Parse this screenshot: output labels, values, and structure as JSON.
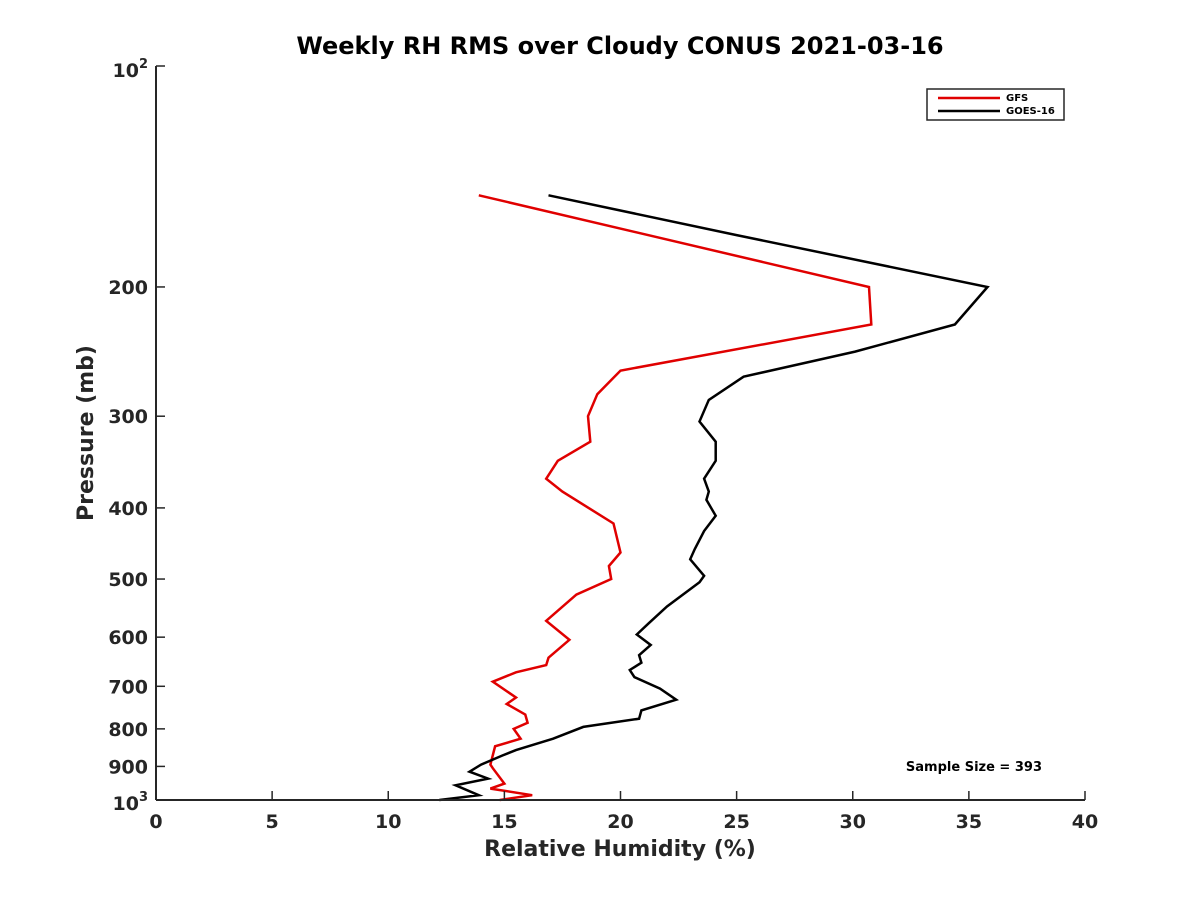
{
  "chart_data": {
    "type": "line",
    "title": "Weekly RH RMS over Cloudy CONUS 2021-03-16",
    "xlabel": "Relative Humidity (%)",
    "ylabel": "Pressure (mb)",
    "xlim": [
      0,
      40
    ],
    "ylim": [
      100,
      1000
    ],
    "y_scale": "log",
    "y_reversed": true,
    "x_ticks": [
      0,
      5,
      10,
      15,
      20,
      25,
      30,
      35,
      40
    ],
    "x_tick_labels": [
      "0",
      "5",
      "10",
      "15",
      "20",
      "25",
      "30",
      "35",
      "40"
    ],
    "y_ticks": [
      200,
      300,
      400,
      500,
      600,
      700,
      800,
      900
    ],
    "y_tick_labels": [
      "200",
      "300",
      "400",
      "500",
      "600",
      "700",
      "800",
      "900"
    ],
    "y_tick_top": {
      "base": "10",
      "exp": "2"
    },
    "y_tick_bottom": {
      "base": "10",
      "exp": "3"
    },
    "grid": false,
    "legend_position": "top-right",
    "annotation": "Sample Size = 393",
    "series": [
      {
        "name": "GFS",
        "color": "#e00000",
        "points": [
          [
            13.9,
            150
          ],
          [
            30.7,
            200
          ],
          [
            30.8,
            225
          ],
          [
            20.0,
            260
          ],
          [
            19.0,
            280
          ],
          [
            18.6,
            300
          ],
          [
            18.7,
            325
          ],
          [
            17.3,
            345
          ],
          [
            16.8,
            365
          ],
          [
            17.5,
            380
          ],
          [
            19.7,
            420
          ],
          [
            20.0,
            460
          ],
          [
            19.5,
            480
          ],
          [
            19.6,
            500
          ],
          [
            18.1,
            525
          ],
          [
            16.8,
            570
          ],
          [
            17.8,
            605
          ],
          [
            16.9,
            640
          ],
          [
            16.8,
            655
          ],
          [
            15.5,
            670
          ],
          [
            14.5,
            690
          ],
          [
            15.5,
            725
          ],
          [
            15.1,
            740
          ],
          [
            15.9,
            765
          ],
          [
            16.0,
            785
          ],
          [
            15.4,
            800
          ],
          [
            15.7,
            825
          ],
          [
            14.6,
            845
          ],
          [
            14.4,
            895
          ],
          [
            14.5,
            905
          ],
          [
            15.0,
            950
          ],
          [
            14.4,
            965
          ],
          [
            16.2,
            985
          ],
          [
            14.8,
            1000
          ]
        ]
      },
      {
        "name": "GOES-16",
        "color": "#000000",
        "points": [
          [
            16.9,
            150
          ],
          [
            25.0,
            170
          ],
          [
            35.8,
            200
          ],
          [
            34.4,
            225
          ],
          [
            30.1,
            245
          ],
          [
            25.3,
            265
          ],
          [
            23.8,
            285
          ],
          [
            23.4,
            305
          ],
          [
            24.1,
            325
          ],
          [
            24.1,
            345
          ],
          [
            23.6,
            365
          ],
          [
            23.8,
            380
          ],
          [
            23.7,
            390
          ],
          [
            23.9,
            400
          ],
          [
            24.1,
            410
          ],
          [
            23.6,
            430
          ],
          [
            23.2,
            455
          ],
          [
            23.0,
            470
          ],
          [
            23.6,
            495
          ],
          [
            23.4,
            505
          ],
          [
            22.0,
            545
          ],
          [
            21.2,
            575
          ],
          [
            20.7,
            595
          ],
          [
            21.3,
            615
          ],
          [
            20.8,
            635
          ],
          [
            20.9,
            650
          ],
          [
            20.4,
            665
          ],
          [
            20.6,
            680
          ],
          [
            21.7,
            705
          ],
          [
            22.4,
            730
          ],
          [
            20.9,
            755
          ],
          [
            20.8,
            775
          ],
          [
            18.4,
            795
          ],
          [
            17.1,
            825
          ],
          [
            15.5,
            855
          ],
          [
            14.9,
            870
          ],
          [
            14.0,
            895
          ],
          [
            13.5,
            915
          ],
          [
            14.3,
            935
          ],
          [
            12.9,
            955
          ],
          [
            13.9,
            985
          ],
          [
            12.2,
            1000
          ]
        ]
      }
    ]
  }
}
